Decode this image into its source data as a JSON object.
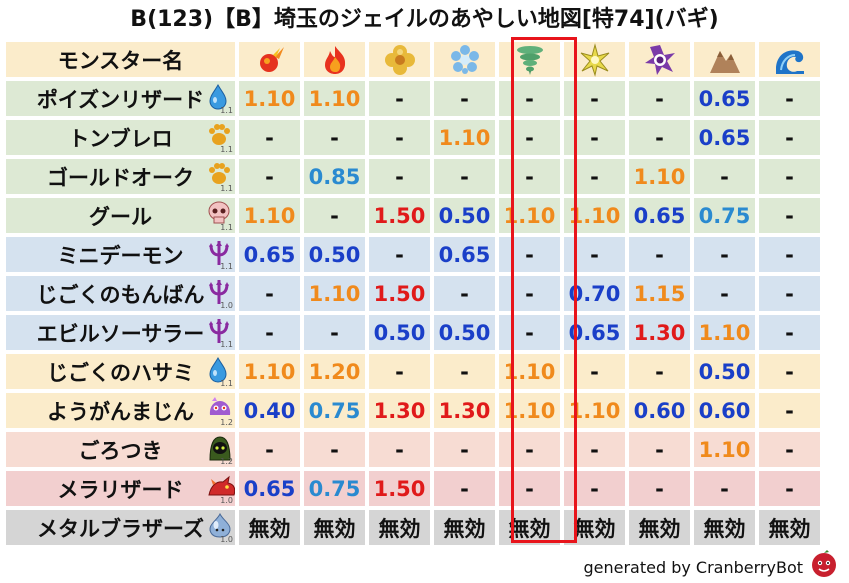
{
  "title": "B(123)【B】埼玉のジェイルのあやしい地図[特74](バギ)",
  "header_label": "モンスター名",
  "columns": [
    {
      "icon": "fire-icon"
    },
    {
      "icon": "flame-icon"
    },
    {
      "icon": "clover-icon"
    },
    {
      "icon": "ice-flower-icon"
    },
    {
      "icon": "tornado-icon"
    },
    {
      "icon": "lightning-star-icon"
    },
    {
      "icon": "dark-swirl-icon"
    },
    {
      "icon": "mountain-icon"
    },
    {
      "icon": "wave-icon"
    }
  ],
  "rows": [
    {
      "name": "ポイズンリザード",
      "icon": "water-drop-icon",
      "lv": "1.1",
      "color": "green",
      "values": [
        "1.10",
        "1.10",
        "-",
        "-",
        "-",
        "-",
        "-",
        "0.65",
        "-"
      ]
    },
    {
      "name": "トンブレロ",
      "icon": "paw-icon",
      "lv": "1.1",
      "color": "green",
      "values": [
        "-",
        "-",
        "-",
        "1.10",
        "-",
        "-",
        "-",
        "0.65",
        "-"
      ]
    },
    {
      "name": "ゴールドオーク",
      "icon": "paw-icon",
      "lv": "1.1",
      "color": "green",
      "values": [
        "-",
        "0.85",
        "-",
        "-",
        "-",
        "-",
        "1.10",
        "-",
        "-"
      ]
    },
    {
      "name": "グール",
      "icon": "skull-icon",
      "lv": "1.1",
      "color": "green",
      "values": [
        "1.10",
        "-",
        "1.50",
        "0.50",
        "1.10",
        "1.10",
        "0.65",
        "0.75",
        "-"
      ]
    },
    {
      "name": "ミニデーモン",
      "icon": "trident-icon",
      "lv": "1.1",
      "color": "blue",
      "values": [
        "0.65",
        "0.50",
        "-",
        "0.65",
        "-",
        "-",
        "-",
        "-",
        "-"
      ]
    },
    {
      "name": "じごくのもんばん",
      "icon": "trident-icon",
      "lv": "1.0",
      "color": "blue",
      "values": [
        "-",
        "1.10",
        "1.50",
        "-",
        "-",
        "0.70",
        "1.15",
        "-",
        "-"
      ]
    },
    {
      "name": "エビルソーサラー",
      "icon": "trident-icon",
      "lv": "1.1",
      "color": "blue",
      "values": [
        "-",
        "-",
        "0.50",
        "0.50",
        "-",
        "0.65",
        "1.30",
        "1.10",
        "-"
      ]
    },
    {
      "name": "じごくのハサミ",
      "icon": "water-drop-icon",
      "lv": "1.1",
      "color": "yellow",
      "values": [
        "1.10",
        "1.20",
        "-",
        "-",
        "1.10",
        "-",
        "-",
        "0.50",
        "-"
      ]
    },
    {
      "name": "ようがんまじん",
      "icon": "lava-blob-icon",
      "lv": "1.2",
      "color": "yellow",
      "values": [
        "0.40",
        "0.75",
        "1.30",
        "1.30",
        "1.10",
        "1.10",
        "0.60",
        "0.60",
        "-"
      ]
    },
    {
      "name": "ごろつき",
      "icon": "hooded-figure-icon",
      "lv": "1.2",
      "color": "pink",
      "values": [
        "-",
        "-",
        "-",
        "-",
        "-",
        "-",
        "-",
        "1.10",
        "-"
      ]
    },
    {
      "name": "メラリザード",
      "icon": "dragon-icon",
      "lv": "1.0",
      "color": "red",
      "values": [
        "0.65",
        "0.75",
        "1.50",
        "-",
        "-",
        "-",
        "-",
        "-",
        "-"
      ]
    },
    {
      "name": "メタルブラザーズ",
      "icon": "metal-slime-icon",
      "lv": "1.0",
      "color": "gray",
      "values": [
        "無効",
        "無効",
        "無効",
        "無効",
        "無効",
        "無効",
        "無効",
        "無効",
        "無効"
      ]
    }
  ],
  "value_colors": {
    "1.10": "#f08a1c",
    "1.15": "#f08a1c",
    "1.20": "#f08a1c",
    "1.30": "#e01a1a",
    "1.50": "#e01a1a",
    "0.40": "#1a3fc8",
    "0.50": "#1a3fc8",
    "0.60": "#1a3fc8",
    "0.65": "#1a3fc8",
    "0.70": "#1a3fc8",
    "0.75": "#2a8ad0",
    "0.85": "#2a8ad0"
  },
  "highlight_column": 4,
  "footer": "generated by CranberryBot",
  "footer_icon": "cranberry-face-icon"
}
